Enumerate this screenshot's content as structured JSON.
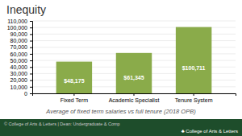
{
  "chart_data": {
    "type": "bar",
    "title": "Inequity",
    "xlabel": "Average of fixed term salaries vs full tenure (2018 OPB)",
    "categories": [
      "Fixed Term",
      "Academic Specialist",
      "Tenure System"
    ],
    "values": [
      48175,
      61345,
      100711
    ],
    "value_labels": [
      "$48,175",
      "$61,345",
      "$100,711"
    ],
    "data_labels": true,
    "color": "#8aab4a",
    "ylim": [
      0,
      110000
    ],
    "yticks": [
      0,
      {
        "value": 10000,
        "label": "10,000"
      },
      {
        "value": 20000,
        "label": "20,000"
      },
      {
        "value": 30000,
        "label": "30,000"
      },
      {
        "value": 40000,
        "label": "40,000"
      },
      {
        "value": 50000,
        "label": "50,000"
      },
      {
        "value": 60000,
        "label": "60,000"
      },
      {
        "value": 70000,
        "label": "70,000"
      },
      {
        "value": 80000,
        "label": "80,000"
      },
      {
        "value": 90000,
        "label": "90,000"
      },
      {
        "value": 100000,
        "label": "100,000"
      },
      {
        "value": 110000,
        "label": "110,000"
      }
    ],
    "grid": true,
    "annotations": [
      "© College of Arts & Letters | Dean: Undergraduate & Comp",
      "♣ College of Arts & Letters"
    ]
  }
}
